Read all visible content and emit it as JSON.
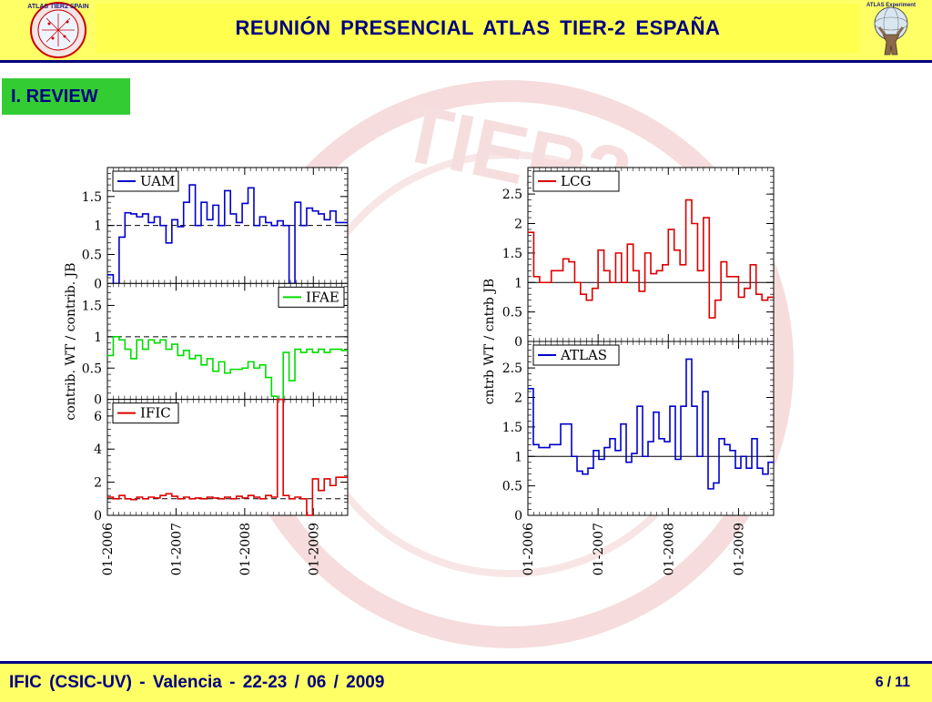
{
  "header": {
    "title": "REUNIÓN  PRESENCIAL  ATLAS  TIER-2  ESPAÑA",
    "logo_left_text": "ATLAS TIER2 SPAIN",
    "logo_right_text": "ATLAS Experiment"
  },
  "section": {
    "label": "I. REVIEW"
  },
  "watermark": {
    "text": "TIER2"
  },
  "footer": {
    "left": "IFIC (CSIC-UV)  -  Valencia  -  22-23 / 06 / 2009",
    "page_current": "6",
    "page_sep": "/",
    "page_total": "11"
  },
  "colors": {
    "header_bg": "#ffff66",
    "header_text": "#000080",
    "section_bg": "#33cc33",
    "uam": "#0000cc",
    "ifae": "#00dd00",
    "ific": "#dd0000",
    "lcg": "#dd0000",
    "atlas": "#0000cc"
  },
  "chart_data": [
    {
      "type": "line",
      "ylabel": "contrib. WT / contrib. JB",
      "x_ticks": [
        "01-2006",
        "01-2007",
        "01-2008",
        "01-2009"
      ],
      "x_range": [
        "2006-01",
        "2009-07"
      ],
      "panels": [
        {
          "name": "UAM",
          "ylim": [
            0,
            2.0
          ],
          "yticks": [
            0,
            0.5,
            1,
            1.5
          ],
          "reference": 1,
          "values": [
            0.15,
            0.0,
            0.8,
            1.22,
            1.2,
            1.15,
            1.2,
            1.05,
            1.15,
            1.0,
            0.7,
            1.1,
            0.98,
            1.4,
            1.7,
            1.0,
            1.4,
            1.1,
            1.35,
            1.0,
            1.6,
            1.2,
            1.05,
            1.38,
            1.65,
            1.0,
            1.15,
            1.05,
            1.0,
            1.08,
            1.0,
            0.0,
            1.4,
            1.0,
            1.3,
            1.25,
            1.2,
            1.1,
            1.25,
            1.05,
            1.05
          ]
        },
        {
          "name": "IFAE",
          "ylim": [
            0,
            1.85
          ],
          "yticks": [
            0,
            0.5,
            1,
            1.5
          ],
          "reference": 1,
          "values": [
            0.7,
            1.0,
            0.95,
            0.8,
            0.65,
            0.95,
            0.8,
            0.95,
            0.9,
            0.95,
            0.8,
            0.88,
            0.7,
            0.78,
            0.65,
            0.7,
            0.55,
            0.65,
            0.45,
            0.6,
            0.42,
            0.48,
            0.48,
            0.5,
            0.6,
            0.5,
            0.55,
            0.35,
            0.05,
            0.0,
            0.75,
            0.3,
            0.8,
            0.75,
            0.8,
            0.75,
            0.8,
            0.75,
            0.8,
            0.8,
            0.78
          ]
        },
        {
          "name": "IFIC",
          "ylim": [
            0,
            7.0
          ],
          "yticks": [
            0,
            2,
            4,
            6
          ],
          "reference": 1,
          "values": [
            1.1,
            1.0,
            1.2,
            1.0,
            0.95,
            1.1,
            1.0,
            1.1,
            1.05,
            1.2,
            1.3,
            1.15,
            1.0,
            1.1,
            1.0,
            1.05,
            1.0,
            1.1,
            1.05,
            1.0,
            1.1,
            1.0,
            1.15,
            1.05,
            1.2,
            1.1,
            1.0,
            1.2,
            1.1,
            8.0,
            1.2,
            1.0,
            1.1,
            1.0,
            0.0,
            2.2,
            1.5,
            2.2,
            1.8,
            2.3,
            2.3
          ]
        }
      ]
    },
    {
      "type": "line",
      "ylabel": "cntrb WT / cntrb JB",
      "x_ticks": [
        "01-2006",
        "01-2007",
        "01-2008",
        "01-2009"
      ],
      "x_range": [
        "2006-01",
        "2009-07"
      ],
      "panels": [
        {
          "name": "LCG",
          "ylim": [
            0,
            2.95
          ],
          "yticks": [
            0,
            0.5,
            1,
            1.5,
            2,
            2.5
          ],
          "reference": 1,
          "values": [
            1.85,
            1.1,
            1.0,
            1.0,
            1.2,
            1.2,
            1.4,
            1.35,
            1.0,
            0.8,
            0.7,
            0.9,
            1.55,
            1.2,
            1.0,
            1.5,
            1.0,
            1.65,
            1.2,
            0.85,
            1.5,
            1.15,
            1.2,
            1.3,
            1.9,
            1.55,
            1.3,
            2.4,
            2.0,
            1.2,
            2.1,
            0.4,
            0.7,
            1.35,
            1.1,
            1.1,
            0.75,
            0.9,
            1.3,
            0.8,
            0.7,
            0.75
          ]
        },
        {
          "name": "ATLAS",
          "ylim": [
            0,
            2.95
          ],
          "yticks": [
            0,
            0.5,
            1,
            1.5,
            2,
            2.5
          ],
          "reference": 1,
          "values": [
            2.15,
            1.2,
            1.15,
            1.15,
            1.2,
            1.2,
            1.55,
            1.55,
            1.0,
            0.75,
            0.7,
            0.8,
            1.1,
            0.95,
            1.15,
            1.3,
            1.1,
            1.55,
            0.9,
            1.05,
            1.85,
            1.0,
            1.25,
            1.75,
            1.3,
            1.25,
            1.85,
            0.95,
            1.85,
            2.65,
            1.85,
            1.0,
            2.1,
            0.45,
            0.55,
            1.3,
            1.2,
            1.1,
            0.8,
            1.0,
            0.8,
            1.3,
            0.8,
            0.7,
            0.9
          ]
        }
      ]
    }
  ]
}
